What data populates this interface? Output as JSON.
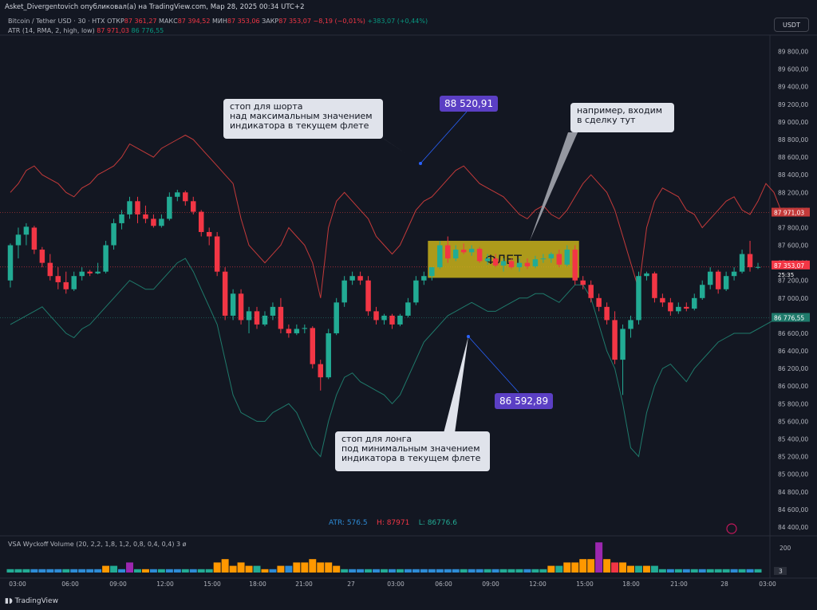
{
  "header": {
    "credit": "Asket_Divergentovich опубликовал(а) на TradingView.com, Мар 28, 2025 00:34 UTC+2",
    "symbol": "Bitcoin / Tether USD · 30 · HTX",
    "open_label": "ОТКР",
    "open": "87 361,27",
    "high_label": "МАКС",
    "high": "87 394,52",
    "low_label": "МИН",
    "low": "87 353,06",
    "close_label": "ЗАКР",
    "close": "87 353,07",
    "change": "−8,19 (−0,01%)",
    "change2": "+383,07 (+0,44%)",
    "atr_label": "ATR (14, RMA, 2, high, low)",
    "atr_val1": "87 971,03",
    "atr_val2": "86 776,55",
    "currency_button": "USDT"
  },
  "annotations": {
    "short_stop": "стоп для шорта\nнад максимальным значением\nиндикатора в текущем флете",
    "short_price": "88 520,91",
    "entry": "например, входим\nв сделку тут",
    "flat_label": "ФЛЕТ",
    "long_price": "86 592,89",
    "long_stop": "стоп для лонга\nпод минимальным значением\nиндикатора в текущем флете"
  },
  "atr_readout": {
    "atr": "ATR: 576.5",
    "h": "H: 87971",
    "l": "L: 86776.6"
  },
  "price_axis": [
    "89 800,00",
    "89 600,00",
    "89 400,00",
    "89 200,00",
    "89 000,00",
    "88 800,00",
    "88 600,00",
    "88 400,00",
    "88 200,00",
    "88 000,00",
    "87 800,00",
    "87 600,00",
    "87 400,00",
    "87 200,00",
    "87 000,00",
    "86 800,00",
    "86 600,00",
    "86 400,00",
    "86 200,00",
    "86 000,00",
    "85 800,00",
    "85 600,00",
    "85 400,00",
    "85 200,00",
    "85 000,00",
    "84 800,00",
    "84 600,00",
    "84 400,00"
  ],
  "price_tags": {
    "atr_high": "87 971,03",
    "last_price": "87 353,07",
    "countdown": "25:35",
    "atr_low": "86 776,55"
  },
  "time_axis": [
    "03:00",
    "06:00",
    "09:00",
    "12:00",
    "15:00",
    "18:00",
    "21:00",
    "27",
    "03:00",
    "06:00",
    "09:00",
    "12:00",
    "15:00",
    "18:00",
    "21:00",
    "28",
    "03:00"
  ],
  "volume": {
    "label": "VSA Wyckoff Volume (20, 2,2, 1,8, 1,2, 0,8, 0,4, 0,4)",
    "count": "3",
    "flag": "ø",
    "axis_label": "200",
    "axis_badge": "3"
  },
  "brand": "TradingView",
  "colors": {
    "up": "#22ab94",
    "down": "#f23645",
    "atr_high": "#c43a3a",
    "atr_low": "#1f7a6b",
    "flat_box": "#c9b21a",
    "tag_purple": "#5b3fc4"
  },
  "chart_data": {
    "type": "candlestick",
    "price_range": [
      84300,
      89950
    ],
    "candles": [
      [
        87200,
        87620,
        87120,
        87600
      ],
      [
        87600,
        87800,
        87450,
        87720
      ],
      [
        87720,
        87850,
        87600,
        87810
      ],
      [
        87800,
        87820,
        87500,
        87550
      ],
      [
        87550,
        87580,
        87350,
        87400
      ],
      [
        87400,
        87500,
        87200,
        87250
      ],
      [
        87250,
        87350,
        87100,
        87180
      ],
      [
        87180,
        87300,
        87050,
        87100
      ],
      [
        87100,
        87300,
        87080,
        87250
      ],
      [
        87250,
        87350,
        87200,
        87300
      ],
      [
        87300,
        87320,
        87250,
        87280
      ],
      [
        87280,
        87400,
        87270,
        87300
      ],
      [
        87300,
        87650,
        87280,
        87600
      ],
      [
        87600,
        87900,
        87550,
        87850
      ],
      [
        87850,
        88000,
        87780,
        87950
      ],
      [
        87950,
        88150,
        87900,
        88100
      ],
      [
        88100,
        88150,
        87850,
        87950
      ],
      [
        87950,
        88050,
        87850,
        87900
      ],
      [
        87900,
        87950,
        87800,
        87820
      ],
      [
        87820,
        87950,
        87800,
        87900
      ],
      [
        87900,
        88200,
        87880,
        88150
      ],
      [
        88150,
        88230,
        88100,
        88200
      ],
      [
        88200,
        88220,
        88050,
        88100
      ],
      [
        88100,
        88150,
        87950,
        87980
      ],
      [
        87980,
        88000,
        87700,
        87750
      ],
      [
        87750,
        87800,
        87600,
        87700
      ],
      [
        87700,
        87750,
        87250,
        87300
      ],
      [
        87300,
        87350,
        86750,
        86800
      ],
      [
        86800,
        87100,
        86750,
        87050
      ],
      [
        87050,
        87100,
        86700,
        86750
      ],
      [
        86750,
        86900,
        86600,
        86850
      ],
      [
        86850,
        86900,
        86650,
        86700
      ],
      [
        86700,
        86850,
        86680,
        86800
      ],
      [
        86800,
        86950,
        86750,
        86900
      ],
      [
        86900,
        87000,
        86600,
        86650
      ],
      [
        86650,
        86700,
        86550,
        86600
      ],
      [
        86600,
        86700,
        86580,
        86650
      ],
      [
        86650,
        86700,
        86600,
        86660
      ],
      [
        86660,
        86680,
        86200,
        86250
      ],
      [
        86250,
        86300,
        85950,
        86100
      ],
      [
        86100,
        86650,
        86080,
        86600
      ],
      [
        86600,
        87000,
        86580,
        86950
      ],
      [
        86950,
        87250,
        86900,
        87200
      ],
      [
        87200,
        87300,
        87150,
        87250
      ],
      [
        87250,
        87300,
        87150,
        87200
      ],
      [
        87200,
        87250,
        86800,
        86850
      ],
      [
        86850,
        86900,
        86700,
        86750
      ],
      [
        86750,
        86820,
        86700,
        86800
      ],
      [
        86800,
        86820,
        86650,
        86700
      ],
      [
        86700,
        86820,
        86680,
        86800
      ],
      [
        86800,
        87000,
        86780,
        86950
      ],
      [
        86950,
        87250,
        86920,
        87200
      ],
      [
        87200,
        87300,
        87150,
        87250
      ],
      [
        87250,
        87350,
        87200,
        87350
      ],
      [
        87350,
        87650,
        87330,
        87600
      ],
      [
        87600,
        87700,
        87400,
        87450
      ],
      [
        87450,
        87600,
        87420,
        87550
      ],
      [
        87550,
        87620,
        87500,
        87520
      ],
      [
        87520,
        87600,
        87480,
        87560
      ],
      [
        87560,
        87580,
        87400,
        87420
      ],
      [
        87420,
        87500,
        87380,
        87450
      ],
      [
        87450,
        87500,
        87350,
        87370
      ],
      [
        87370,
        87450,
        87300,
        87420
      ],
      [
        87420,
        87450,
        87330,
        87350
      ],
      [
        87350,
        87450,
        87300,
        87400
      ],
      [
        87400,
        87450,
        87330,
        87360
      ],
      [
        87360,
        87480,
        87340,
        87440
      ],
      [
        87440,
        87500,
        87400,
        87450
      ],
      [
        87450,
        87520,
        87400,
        87500
      ],
      [
        87500,
        87550,
        87350,
        87380
      ],
      [
        87380,
        87600,
        87360,
        87550
      ],
      [
        87550,
        87600,
        87150,
        87200
      ],
      [
        87200,
        87250,
        87100,
        87150
      ],
      [
        87150,
        87200,
        86950,
        87000
      ],
      [
        87000,
        87050,
        86850,
        86900
      ],
      [
        86900,
        86950,
        86700,
        86750
      ],
      [
        86750,
        86850,
        86250,
        86300
      ],
      [
        86300,
        86700,
        85900,
        86650
      ],
      [
        86650,
        86800,
        86550,
        86750
      ],
      [
        86750,
        87300,
        86700,
        87250
      ],
      [
        87250,
        87300,
        87200,
        87280
      ],
      [
        87280,
        87300,
        86950,
        87000
      ],
      [
        87000,
        87050,
        86900,
        86950
      ],
      [
        86950,
        87000,
        86800,
        86850
      ],
      [
        86850,
        86950,
        86820,
        86900
      ],
      [
        86900,
        86950,
        86850,
        86880
      ],
      [
        86880,
        87050,
        86860,
        87000
      ],
      [
        87000,
        87200,
        86980,
        87150
      ],
      [
        87150,
        87350,
        87100,
        87300
      ],
      [
        87300,
        87320,
        87050,
        87100
      ],
      [
        87100,
        87300,
        87080,
        87250
      ],
      [
        87250,
        87350,
        87200,
        87300
      ],
      [
        87300,
        87550,
        87280,
        87500
      ],
      [
        87500,
        87650,
        87300,
        87350
      ],
      [
        87350,
        87400,
        87330,
        87353
      ]
    ],
    "atr_high": [
      88200,
      88300,
      88450,
      88500,
      88400,
      88350,
      88300,
      88200,
      88150,
      88250,
      88300,
      88400,
      88450,
      88500,
      88600,
      88750,
      88700,
      88650,
      88600,
      88700,
      88750,
      88800,
      88850,
      88800,
      88700,
      88600,
      88500,
      88400,
      88300,
      87900,
      87600,
      87500,
      87400,
      87500,
      87600,
      87800,
      87700,
      87600,
      87400,
      87000,
      87800,
      88100,
      88200,
      88100,
      88000,
      87900,
      87700,
      87600,
      87500,
      87600,
      87800,
      88000,
      88100,
      88150,
      88250,
      88350,
      88450,
      88500,
      88400,
      88300,
      88250,
      88200,
      88150,
      88050,
      87950,
      87900,
      88000,
      88050,
      87950,
      87900,
      88000,
      88150,
      88300,
      88400,
      88300,
      88200,
      88000,
      87700,
      87400,
      87100,
      87800,
      88100,
      88250,
      88200,
      88150,
      88000,
      87950,
      87800,
      87900,
      88000,
      88100,
      88150,
      88000,
      87950,
      88100,
      88300,
      88200,
      87971
    ],
    "atr_low": [
      86700,
      86750,
      86800,
      86850,
      86900,
      86800,
      86700,
      86600,
      86550,
      86650,
      86700,
      86800,
      86900,
      87000,
      87100,
      87200,
      87150,
      87100,
      87100,
      87200,
      87300,
      87400,
      87450,
      87300,
      87100,
      86900,
      86700,
      86300,
      85900,
      85700,
      85650,
      85600,
      85600,
      85700,
      85750,
      85800,
      85700,
      85500,
      85300,
      85200,
      85600,
      85900,
      86100,
      86150,
      86050,
      86000,
      85950,
      85900,
      85800,
      85900,
      86100,
      86300,
      86500,
      86600,
      86700,
      86800,
      86850,
      86900,
      86950,
      86900,
      86850,
      86850,
      86900,
      86950,
      87000,
      87000,
      87050,
      87050,
      87000,
      86950,
      87050,
      87150,
      87150,
      87000,
      86700,
      86400,
      86200,
      85800,
      85300,
      85200,
      85700,
      86000,
      86200,
      86250,
      86150,
      86050,
      86200,
      86300,
      86400,
      86500,
      86550,
      86600,
      86600,
      86600,
      86650,
      86700,
      86750,
      86776
    ]
  },
  "volume_bars": [
    1,
    1,
    1,
    1,
    1,
    1,
    1,
    1,
    1,
    1,
    1,
    1,
    2,
    2,
    1,
    3,
    1,
    1,
    1,
    1,
    1,
    1,
    1,
    1,
    1,
    1,
    3,
    4,
    2,
    3,
    2,
    2,
    1,
    1,
    2,
    2,
    3,
    3,
    4,
    3,
    3,
    2,
    1,
    1,
    1,
    1,
    1,
    1,
    1,
    1,
    1,
    1,
    1,
    1,
    1,
    1,
    1,
    1,
    1,
    1,
    1,
    1,
    1,
    1,
    1,
    1,
    1,
    1,
    2,
    2,
    3,
    3,
    4,
    4,
    9,
    4,
    3,
    3,
    2,
    2,
    2,
    2,
    1,
    1,
    1,
    1,
    1,
    1,
    1,
    1,
    1,
    1,
    1,
    1,
    1,
    1,
    1
  ],
  "volume_colors": [
    "g",
    "g",
    "g",
    "b",
    "b",
    "b",
    "b",
    "g",
    "b",
    "b",
    "b",
    "b",
    "o",
    "g",
    "b",
    "m",
    "g",
    "o",
    "b",
    "g",
    "b",
    "b",
    "g",
    "b",
    "g",
    "g",
    "o",
    "o",
    "o",
    "o",
    "o",
    "g",
    "o",
    "b",
    "o",
    "b",
    "o",
    "o",
    "o",
    "o",
    "o",
    "o",
    "g",
    "b",
    "b",
    "g",
    "b",
    "g",
    "b",
    "g",
    "b",
    "b",
    "b",
    "b",
    "b",
    "b",
    "b",
    "g",
    "b",
    "b",
    "g",
    "b",
    "g",
    "g",
    "g",
    "b",
    "g",
    "g",
    "o",
    "g",
    "o",
    "o",
    "o",
    "o",
    "m",
    "o",
    "r",
    "o",
    "o",
    "g",
    "o",
    "g",
    "g",
    "b",
    "g",
    "b",
    "g",
    "b",
    "g",
    "g",
    "g",
    "b",
    "g",
    "b",
    "g",
    "b",
    "w"
  ]
}
